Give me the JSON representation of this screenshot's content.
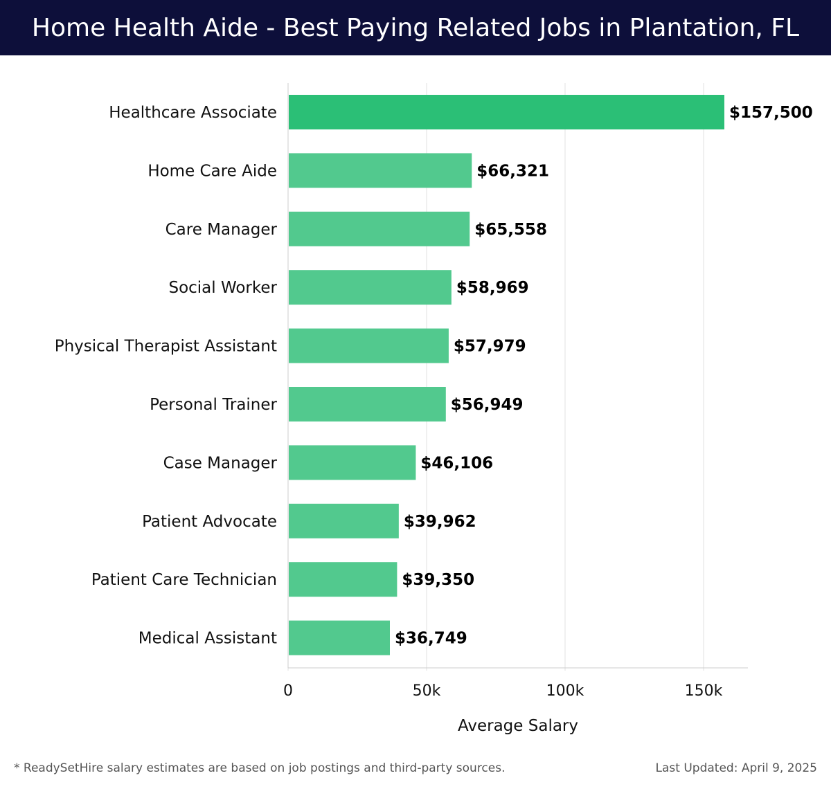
{
  "header": {
    "title": "Home Health Aide - Best Paying Related Jobs in Plantation, FL"
  },
  "footer": {
    "note": "* ReadySetHire salary estimates are based on job postings and third-party sources.",
    "updated": "Last Updated: April 9, 2025"
  },
  "colors": {
    "header_bg": "#0d0f3a",
    "bar_top": "#2bbf76",
    "bar": "#52c98e",
    "grid": "#e2e2e2"
  },
  "chart_data": {
    "type": "bar",
    "orientation": "horizontal",
    "title": "",
    "xlabel": "Average Salary",
    "ylabel": "",
    "xlim": [
      0,
      165000
    ],
    "x_ticks": [
      {
        "value": 0,
        "label": "0"
      },
      {
        "value": 50000,
        "label": "50k"
      },
      {
        "value": 100000,
        "label": "100k"
      },
      {
        "value": 150000,
        "label": "150k"
      }
    ],
    "grid": true,
    "categories": [
      "Healthcare Associate",
      "Home Care Aide",
      "Care Manager",
      "Social Worker",
      "Physical Therapist Assistant",
      "Personal Trainer",
      "Case Manager",
      "Patient Advocate",
      "Patient Care Technician",
      "Medical Assistant"
    ],
    "values": [
      157500,
      66321,
      65558,
      58969,
      57979,
      56949,
      46106,
      39962,
      39350,
      36749
    ],
    "value_labels": [
      "$157,500",
      "$66,321",
      "$65,558",
      "$58,969",
      "$57,979",
      "$56,949",
      "$46,106",
      "$39,962",
      "$39,350",
      "$36,749"
    ]
  }
}
